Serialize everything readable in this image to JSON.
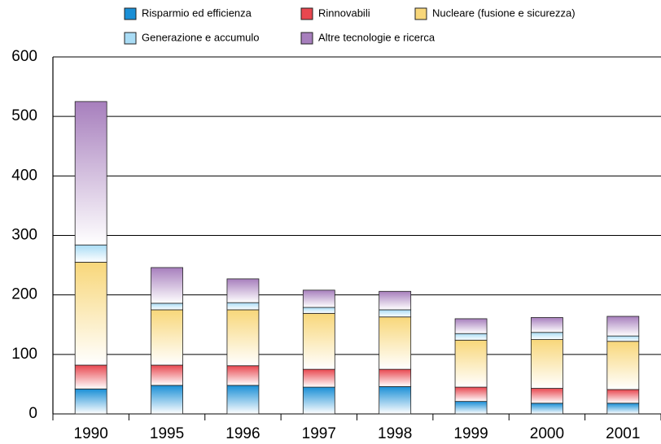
{
  "chart_data": {
    "type": "stacked_bar",
    "categories": [
      "1990",
      "1995",
      "1996",
      "1997",
      "1998",
      "1999",
      "2000",
      "2001"
    ],
    "series": [
      {
        "name": "Risparmio ed efficienza",
        "color": "#1a8fd6",
        "values": [
          42,
          48,
          48,
          45,
          46,
          21,
          18,
          18
        ]
      },
      {
        "name": "Rinnovabili",
        "color": "#e8474f",
        "values": [
          40,
          34,
          33,
          30,
          29,
          24,
          25,
          23
        ]
      },
      {
        "name": "Nucleare (fusione e sicurezza)",
        "color": "#f8d77a",
        "values": [
          173,
          93,
          94,
          94,
          88,
          79,
          82,
          81
        ]
      },
      {
        "name": "Generazione e accumulo",
        "color": "#a9dcf5",
        "values": [
          29,
          11,
          12,
          10,
          12,
          11,
          12,
          9
        ]
      },
      {
        "name": "Altre tecnologie e ricerca",
        "color": "#a77fbd",
        "values": [
          241,
          60,
          40,
          29,
          31,
          25,
          25,
          33
        ]
      }
    ],
    "ylim": [
      0,
      600
    ],
    "yticks": [
      0,
      100,
      200,
      300,
      400,
      500,
      600
    ],
    "grid": true
  }
}
